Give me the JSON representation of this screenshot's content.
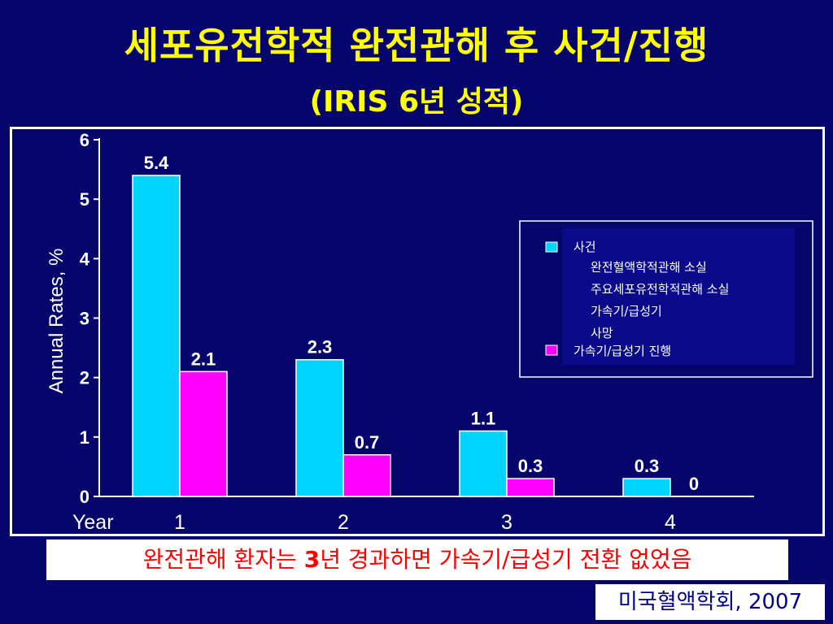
{
  "slide": {
    "title": "세포유전학적 완전관해 후 사건/진행",
    "subtitle": "(IRIS 6년 성적)",
    "note_part1": "완전관해 환자는 ",
    "note_bold": "3",
    "note_part2": "년 경과하면 가속기/급성기 전환 없었음",
    "source": "미국혈액학회, 2007"
  },
  "colors": {
    "background": "#05056b",
    "title": "#ffff00",
    "events": "#00d4ff",
    "progression": "#ff00ff",
    "note_text": "#ff0000"
  },
  "chart_data": {
    "type": "bar",
    "categories": [
      "1",
      "2",
      "3",
      "4"
    ],
    "xlabel": "Year",
    "ylabel": "Annual Rates, %",
    "ylim": [
      0,
      6
    ],
    "yticks": [
      "0",
      "1",
      "2",
      "3",
      "4",
      "5",
      "6"
    ],
    "grid": false,
    "legend_position": "top-right",
    "series": [
      {
        "name": "사건",
        "legend_sub": [
          "완전혈액학적관해 소실",
          "주요세포유전학적관해 소실",
          "가속기/급성기",
          "사망"
        ],
        "values": [
          5.4,
          2.3,
          1.1,
          0.3
        ],
        "labels": [
          "5.4",
          "2.3",
          "1.1",
          "0.3"
        ]
      },
      {
        "name": "가속기/급성기 진행",
        "values": [
          2.1,
          0.7,
          0.3,
          0
        ],
        "labels": [
          "2.1",
          "0.7",
          "0.3",
          "0"
        ]
      }
    ]
  }
}
